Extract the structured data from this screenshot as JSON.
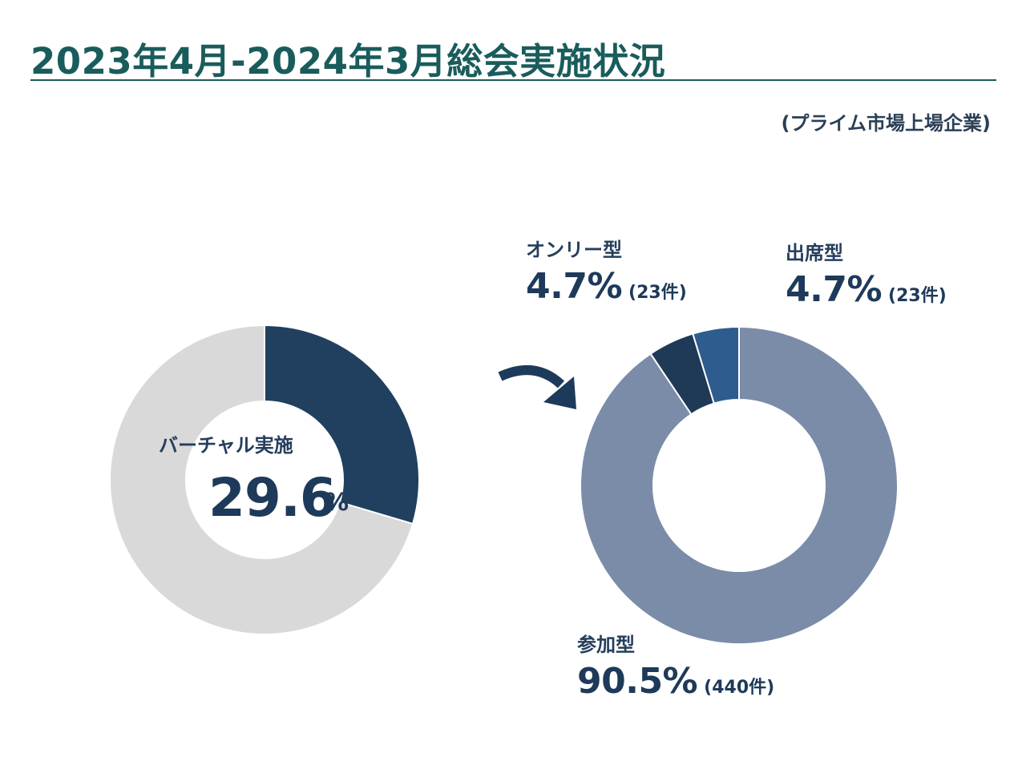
{
  "header": {
    "title": "2023年4月-2024年3月総会実施状況",
    "subtitle": "(プライム市場上場企業)"
  },
  "colors": {
    "title": "#1a5c5c",
    "virtual": "#21405f",
    "non_virtual": "#d9d9d9",
    "participation": "#7a8ca8",
    "only": "#1f3a56",
    "attendance": "#2e5c8e"
  },
  "chart_data": [
    {
      "type": "pie",
      "hole": true,
      "title": "",
      "slices": [
        {
          "name": "バーチャル実施",
          "value": 29.6,
          "color": "#21405f"
        },
        {
          "name": "",
          "value": 70.4,
          "color": "#d9d9d9"
        }
      ],
      "center_label": "バーチャル実施",
      "center_value": "29.6",
      "center_unit": "%"
    },
    {
      "type": "pie",
      "hole": true,
      "title": "",
      "slices": [
        {
          "name": "参加型",
          "value": 90.5,
          "count": 440,
          "label": "90.5%",
          "count_label": "(440件)",
          "color": "#7a8ca8"
        },
        {
          "name": "オンリー型",
          "value": 4.7,
          "count": 23,
          "label": "4.7%",
          "count_label": "(23件)",
          "color": "#1f3a56"
        },
        {
          "name": "出席型",
          "value": 4.7,
          "count": 23,
          "label": "4.7%",
          "count_label": "(23件)",
          "color": "#2e5c8e"
        }
      ]
    }
  ],
  "arrow": {
    "icon": "curved-arrow-right-icon"
  }
}
